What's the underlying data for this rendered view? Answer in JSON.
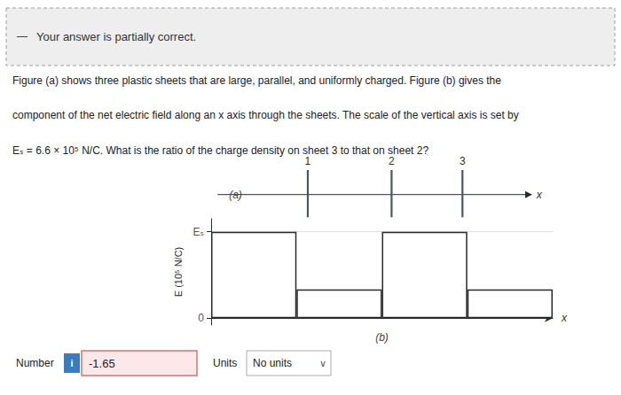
{
  "chart_data": {
    "type": "bar",
    "categories": [
      null,
      null,
      null,
      null
    ],
    "values": [
      1.0,
      0.333,
      1.0,
      0.333
    ],
    "color": "#2a2a2a",
    "ylabel": "E (10⁵ N/C)",
    "ylim": [
      -0.08,
      1.15
    ],
    "yticks": [
      0,
      {
        "value": 1.0,
        "label": "Eₛ"
      }
    ],
    "grid": true,
    "tick_labels": "y",
    "annotations": [
      "—",
      "Your answer is partially correct.",
      "Figure (a) shows three plastic sheets that are large, parallel, and uniformly charged. Figure (b) gives the",
      "component of the net electric field along an x axis through the sheets. The scale of the vertical axis is set by",
      "Eₛ = 6.6 × 10⁵ N/C. What is the ratio of the charge density on sheet 3 to that on sheet 2?",
      "1",
      "2",
      "3",
      "x",
      "(a)",
      "x",
      "(b)",
      "Number",
      "i",
      "-1.65",
      "Units",
      "No units",
      "∨"
    ]
  }
}
